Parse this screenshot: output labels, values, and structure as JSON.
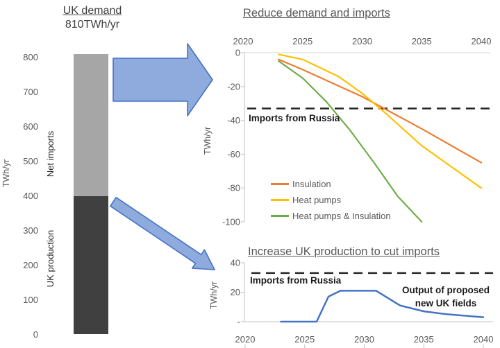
{
  "colors": {
    "arrow_fill": "#8faadc",
    "arrow_stroke": "#4472c4",
    "axis_text": "#595959",
    "reference_line": "#262626"
  },
  "chart_data": [
    {
      "id": "uk-demand-bar",
      "type": "bar",
      "title": "UK demand",
      "subtitle": "810TWh/yr",
      "ylabel": "TWh/yr",
      "ylim": [
        0,
        810
      ],
      "yticks": [
        0,
        100,
        200,
        300,
        400,
        500,
        600,
        700,
        800
      ],
      "total": 810,
      "segments": [
        {
          "name": "UK production",
          "from": 0,
          "to": 400,
          "color": "#404040"
        },
        {
          "name": "Net imports",
          "from": 400,
          "to": 810,
          "color": "#a6a6a6"
        }
      ]
    },
    {
      "id": "reduce-demand-and-imports",
      "type": "line",
      "title": "Reduce demand and imports",
      "ylabel": "TWh/yr",
      "x_axis_position": "top",
      "xlim": [
        2020,
        2040
      ],
      "xticks": [
        2020,
        2025,
        2030,
        2035,
        2040
      ],
      "ylim": [
        -100,
        0
      ],
      "yticks": [
        0,
        -20,
        -40,
        -60,
        -80,
        -100
      ],
      "grid": false,
      "legend_position": "inside-bottom-left",
      "reference_line": {
        "label": "Imports from Russia",
        "value": -33,
        "style": "dashed"
      },
      "series": [
        {
          "name": "Insulation",
          "color": "#ed7d31",
          "x": [
            2023,
            2025,
            2030,
            2035,
            2040
          ],
          "y": [
            -4,
            -10,
            -26,
            -45,
            -65
          ]
        },
        {
          "name": "Heat pumps",
          "color": "#ffc000",
          "x": [
            2023,
            2025,
            2028,
            2030,
            2032,
            2035,
            2040
          ],
          "y": [
            -1,
            -4,
            -14,
            -24,
            -36,
            -55,
            -80
          ]
        },
        {
          "name": "Heat pumps & Insulation",
          "color": "#70ad47",
          "x": [
            2023,
            2025,
            2027,
            2029,
            2031,
            2033,
            2035
          ],
          "y": [
            -5,
            -15,
            -29,
            -46,
            -65,
            -85,
            -100
          ]
        }
      ]
    },
    {
      "id": "increase-uk-production",
      "type": "line",
      "title": "Increase UK production to cut imports",
      "ylabel": "TWh/yr",
      "x_axis_position": "bottom",
      "xlim": [
        2020,
        2040
      ],
      "xticks": [
        2020,
        2025,
        2030,
        2035,
        2040
      ],
      "ylim": [
        0,
        40
      ],
      "yticks": [
        40,
        20,
        0
      ],
      "ytick_labels": [
        "40",
        "20",
        "-"
      ],
      "grid": false,
      "reference_line": {
        "label": "Imports from Russia",
        "value": 33,
        "style": "dashed"
      },
      "annotation": "Output of proposed new UK fields",
      "series": [
        {
          "name": "Output of proposed new UK fields",
          "color": "#4472c4",
          "x": [
            2023,
            2026,
            2027,
            2028,
            2031,
            2033,
            2035,
            2037,
            2040
          ],
          "y": [
            0,
            0,
            17,
            21,
            21,
            11,
            7,
            5,
            3
          ]
        }
      ]
    }
  ]
}
